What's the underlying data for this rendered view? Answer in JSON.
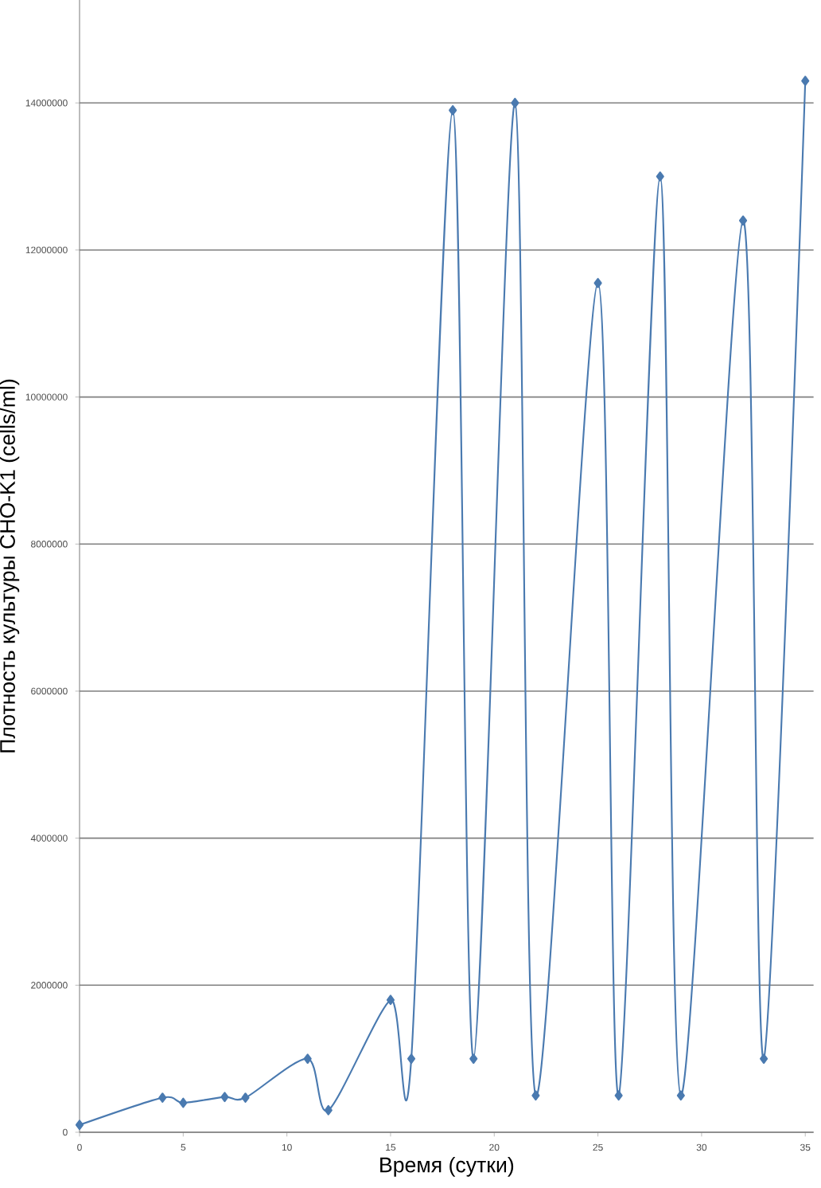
{
  "chart_data": {
    "type": "line",
    "xlabel": "Время (сутки)",
    "ylabel": "Плотность культуры CHO-K1 (cells/ml)",
    "x": [
      0,
      4,
      5,
      7,
      8,
      11,
      12,
      15,
      16,
      18,
      19,
      21,
      22,
      25,
      26,
      28,
      29,
      32,
      33,
      35
    ],
    "series": [
      {
        "color": "#4a7ab0",
        "values": [
          100000,
          470000,
          400000,
          480000,
          470000,
          1000000,
          300000,
          1800000,
          1000000,
          13900000,
          1000000,
          14000000,
          500000,
          11550000,
          500000,
          13000000,
          500000,
          12400000,
          1000000,
          14300000
        ]
      }
    ],
    "xlim": [
      0,
      35.4
    ],
    "ylim": [
      0,
      15400000
    ],
    "xticks": [
      0,
      5,
      10,
      15,
      20,
      25,
      30,
      35
    ],
    "yticks": [
      0,
      2000000,
      4000000,
      6000000,
      8000000,
      10000000,
      12000000,
      14000000
    ],
    "grid": "y",
    "marker": "diamond",
    "line_style": "solid"
  }
}
